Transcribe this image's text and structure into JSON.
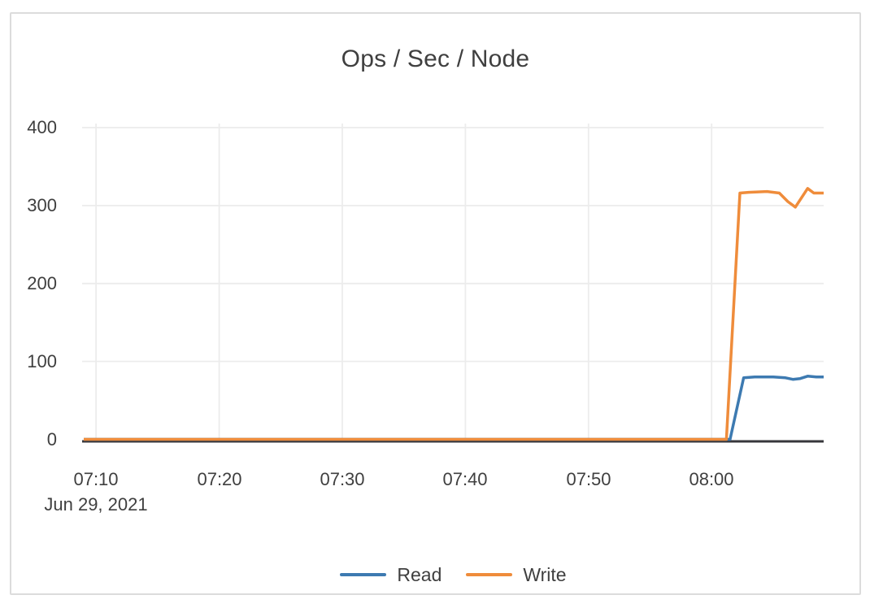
{
  "chart_data": {
    "type": "line",
    "title": "Ops / Sec / Node",
    "x_axis": {
      "tick_labels": [
        "07:10",
        "07:20",
        "07:30",
        "07:40",
        "07:50",
        "08:00"
      ],
      "date_label": "Jun 29, 2021",
      "range": [
        "07:09:00",
        "08:09:06"
      ]
    },
    "y_axis": {
      "tick_labels": [
        "0",
        "100",
        "200",
        "300",
        "400"
      ],
      "range": [
        0,
        400
      ]
    },
    "grid": true,
    "legend_position": "bottom",
    "series": [
      {
        "name": "Read",
        "color": "#3d7ab1",
        "points": [
          [
            "07:09:00",
            0
          ],
          [
            "07:20:00",
            0
          ],
          [
            "07:40:00",
            0
          ],
          [
            "08:00:00",
            0
          ],
          [
            "08:01:30",
            0
          ],
          [
            "08:02:36",
            79
          ],
          [
            "08:03:30",
            80
          ],
          [
            "08:05:00",
            80
          ],
          [
            "08:06:00",
            79
          ],
          [
            "08:06:36",
            77
          ],
          [
            "08:07:12",
            78
          ],
          [
            "08:07:48",
            81
          ],
          [
            "08:08:30",
            80
          ],
          [
            "08:09:06",
            80
          ]
        ]
      },
      {
        "name": "Write",
        "color": "#ef8c3b",
        "points": [
          [
            "07:09:00",
            0
          ],
          [
            "07:20:00",
            0
          ],
          [
            "07:40:00",
            0
          ],
          [
            "08:00:00",
            0
          ],
          [
            "08:01:12",
            0
          ],
          [
            "08:02:18",
            316
          ],
          [
            "08:03:00",
            317
          ],
          [
            "08:04:30",
            318
          ],
          [
            "08:05:30",
            316
          ],
          [
            "08:06:12",
            305
          ],
          [
            "08:06:48",
            298
          ],
          [
            "08:07:48",
            322
          ],
          [
            "08:08:18",
            316
          ],
          [
            "08:09:06",
            316
          ]
        ]
      }
    ],
    "colors": {
      "text": "#3f3f3f",
      "gridline": "#ececec",
      "axis_line": "#37373b",
      "card_border": "#dcdcdc"
    }
  }
}
